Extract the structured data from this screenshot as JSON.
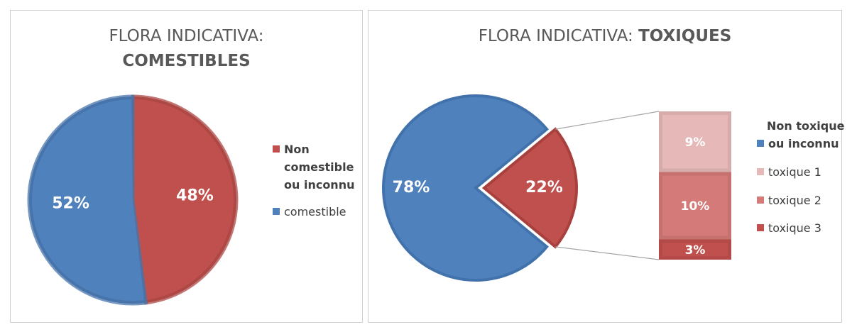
{
  "chart_data": [
    {
      "type": "pie",
      "title": "FLORA INDICATIVA:",
      "title_emphasis": "COMESTIBLES",
      "categories": [
        "Non comestible ou inconnu",
        "comestible"
      ],
      "values": [
        48,
        52
      ],
      "value_labels": [
        "48%",
        "52%"
      ],
      "colors": [
        "#c0504d",
        "#4f81bd"
      ]
    },
    {
      "type": "bar-of-pie",
      "title": "FLORA INDICATIVA:",
      "title_emphasis": "TOXIQUES",
      "categories": [
        "Non toxique ou inconnu",
        null
      ],
      "values": [
        78,
        22
      ],
      "value_labels": [
        "78%",
        "22%"
      ],
      "colors": [
        "#4f81bd",
        "#c0504d"
      ],
      "secondary": {
        "categories": [
          "toxique 1",
          "toxique 2",
          "toxique 3"
        ],
        "values": [
          9,
          10,
          3
        ],
        "value_labels": [
          "9%",
          "10%",
          "3%"
        ],
        "colors": [
          "#e6b9b8",
          "#d47a78",
          "#c0504d"
        ]
      }
    }
  ]
}
